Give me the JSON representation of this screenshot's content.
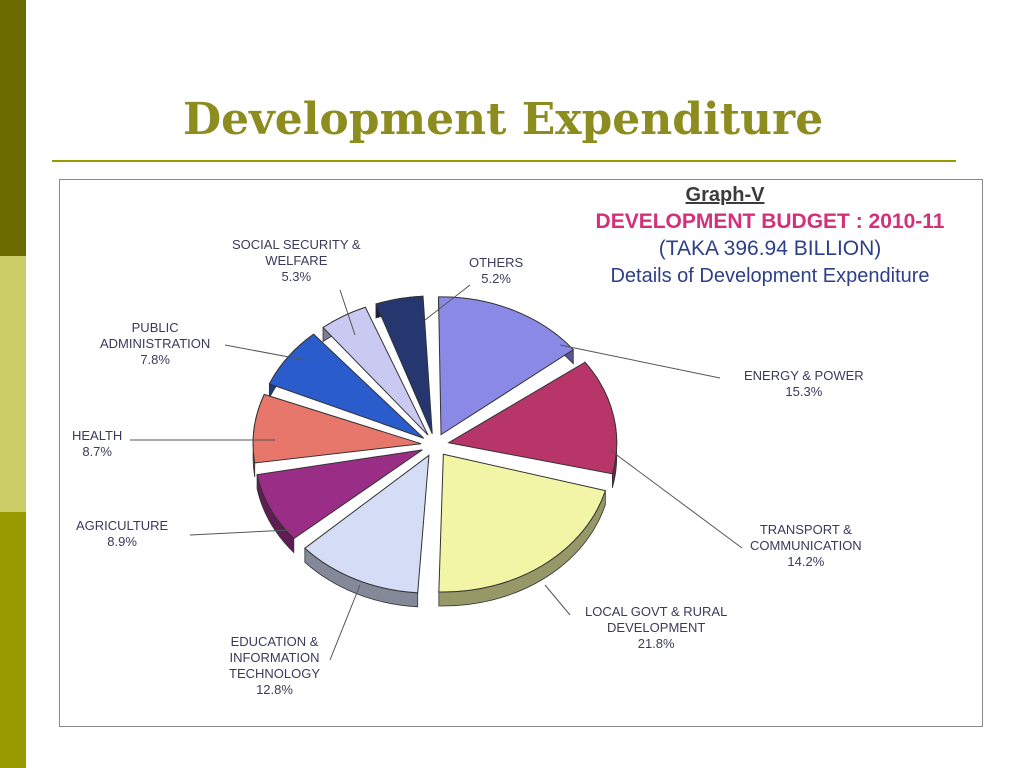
{
  "slide": {
    "title": "Development Expenditure"
  },
  "chart_data": {
    "type": "pie",
    "graph_label": "Graph-V",
    "title": "DEVELOPMENT BUDGET : 2010-11",
    "subtitle": "(TAKA 396.94 BILLION)",
    "caption": "Details of Development Expenditure",
    "slices": [
      {
        "name": "ENERGY & POWER",
        "value": 15.3,
        "value_label": "15.3%",
        "color": "#8a8ae6",
        "lines": [
          "ENERGY & POWER"
        ]
      },
      {
        "name": "TRANSPORT & COMMUNICATION",
        "value": 14.2,
        "value_label": "14.2%",
        "color": "#b8356a",
        "lines": [
          "TRANSPORT &",
          "COMMUNICATION"
        ]
      },
      {
        "name": "LOCAL GOVT & RURAL DEVELOPMENT",
        "value": 21.8,
        "value_label": "21.8%",
        "color": "#f2f5a6",
        "lines": [
          "LOCAL GOVT & RURAL",
          "DEVELOPMENT"
        ]
      },
      {
        "name": "EDUCATION & INFORMATION TECHNOLOGY",
        "value": 12.8,
        "value_label": "12.8%",
        "color": "#d4ddf5",
        "lines": [
          "EDUCATION &",
          "INFORMATION",
          "TECHNOLOGY"
        ]
      },
      {
        "name": "AGRICULTURE",
        "value": 8.9,
        "value_label": "8.9%",
        "color": "#9a2e86",
        "lines": [
          "AGRICULTURE"
        ]
      },
      {
        "name": "HEALTH",
        "value": 8.7,
        "value_label": "8.7%",
        "color": "#e8776b",
        "lines": [
          "HEALTH"
        ]
      },
      {
        "name": "PUBLIC ADMINISTRATION",
        "value": 7.8,
        "value_label": "7.8%",
        "color": "#2b5ccc",
        "lines": [
          "PUBLIC",
          "ADMINISTRATION"
        ]
      },
      {
        "name": "SOCIAL SECURITY & WELFARE",
        "value": 5.3,
        "value_label": "5.3%",
        "color": "#c9c9f2",
        "lines": [
          "SOCIAL SECURITY &",
          "WELFARE"
        ]
      },
      {
        "name": "OTHERS",
        "value": 5.2,
        "value_label": "5.2%",
        "color": "#26366e",
        "lines": [
          "OTHERS"
        ]
      }
    ],
    "legend_style": "leader-line callouts around pie"
  }
}
